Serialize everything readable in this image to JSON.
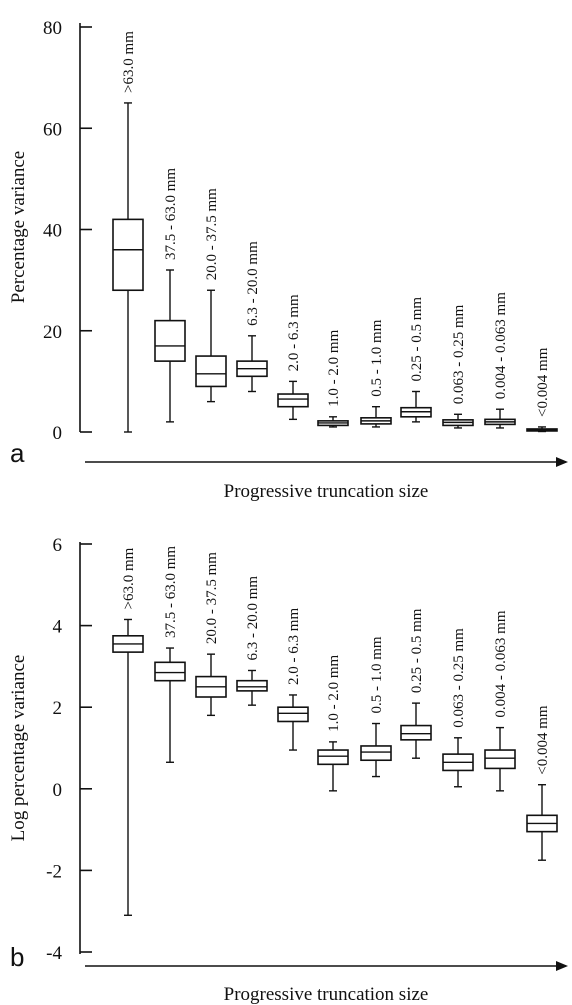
{
  "panels": [
    {
      "letter": "a",
      "bottom_label": "Progressive truncation size"
    },
    {
      "letter": "b",
      "bottom_label": "Progressive truncation size"
    }
  ],
  "chart_data": [
    {
      "type": "box",
      "ylabel": "Percentage variance",
      "ylim": [
        0,
        80
      ],
      "yticks": [
        0,
        20,
        40,
        60,
        80
      ],
      "categories": [
        ">63.0 mm",
        "37.5 - 63.0 mm",
        "20.0 - 37.5 mm",
        "6.3 - 20.0 mm",
        "2.0 - 6.3 mm",
        "1.0 - 2.0 mm",
        "0.5 - 1.0 mm",
        "0.25 - 0.5 mm",
        "0.063 - 0.25 mm",
        "0.004 - 0.063 mm",
        "<0.004 mm"
      ],
      "boxes": [
        {
          "min": 0,
          "q1": 28,
          "median": 36,
          "q3": 42,
          "max": 65
        },
        {
          "min": 2,
          "q1": 14,
          "median": 17,
          "q3": 22,
          "max": 32
        },
        {
          "min": 6,
          "q1": 9,
          "median": 11.5,
          "q3": 15,
          "max": 28
        },
        {
          "min": 8,
          "q1": 11,
          "median": 12.5,
          "q3": 14,
          "max": 19
        },
        {
          "min": 2.5,
          "q1": 5,
          "median": 6.5,
          "q3": 7.5,
          "max": 10
        },
        {
          "min": 1,
          "q1": 1.3,
          "median": 1.8,
          "q3": 2.2,
          "max": 3
        },
        {
          "min": 1,
          "q1": 1.6,
          "median": 2.2,
          "q3": 2.8,
          "max": 5
        },
        {
          "min": 2,
          "q1": 3,
          "median": 4,
          "q3": 4.8,
          "max": 8
        },
        {
          "min": 0.8,
          "q1": 1.3,
          "median": 1.9,
          "q3": 2.4,
          "max": 3.5
        },
        {
          "min": 0.8,
          "q1": 1.5,
          "median": 2,
          "q3": 2.5,
          "max": 4.5
        },
        {
          "min": 0.1,
          "q1": 0.3,
          "median": 0.4,
          "q3": 0.6,
          "max": 1
        }
      ]
    },
    {
      "type": "box",
      "ylabel": "Log percentage variance",
      "ylim": [
        -4,
        6
      ],
      "yticks": [
        -4,
        -2,
        0,
        2,
        4,
        6
      ],
      "categories": [
        ">63.0 mm",
        "37.5 - 63.0 mm",
        "20.0 - 37.5 mm",
        "6.3 - 20.0 mm",
        "2.0 - 6.3 mm",
        "1.0 - 2.0 mm",
        "0.5 - 1.0 mm",
        "0.25 - 0.5 mm",
        "0.063 - 0.25 mm",
        "0.004 - 0.063 mm",
        "<0.004 mm"
      ],
      "boxes": [
        {
          "min": -3.1,
          "q1": 3.35,
          "median": 3.55,
          "q3": 3.75,
          "max": 4.15
        },
        {
          "min": 0.65,
          "q1": 2.65,
          "median": 2.85,
          "q3": 3.1,
          "max": 3.45
        },
        {
          "min": 1.8,
          "q1": 2.25,
          "median": 2.5,
          "q3": 2.75,
          "max": 3.3
        },
        {
          "min": 2.05,
          "q1": 2.4,
          "median": 2.5,
          "q3": 2.65,
          "max": 2.9
        },
        {
          "min": 0.95,
          "q1": 1.65,
          "median": 1.85,
          "q3": 2.0,
          "max": 2.3
        },
        {
          "min": -0.05,
          "q1": 0.6,
          "median": 0.8,
          "q3": 0.95,
          "max": 1.15
        },
        {
          "min": 0.3,
          "q1": 0.7,
          "median": 0.9,
          "q3": 1.05,
          "max": 1.6
        },
        {
          "min": 0.75,
          "q1": 1.2,
          "median": 1.35,
          "q3": 1.55,
          "max": 2.1
        },
        {
          "min": 0.05,
          "q1": 0.45,
          "median": 0.65,
          "q3": 0.85,
          "max": 1.25
        },
        {
          "min": -0.05,
          "q1": 0.5,
          "median": 0.75,
          "q3": 0.95,
          "max": 1.5
        },
        {
          "min": -1.75,
          "q1": -1.05,
          "median": -0.85,
          "q3": -0.65,
          "max": 0.1
        }
      ]
    }
  ]
}
